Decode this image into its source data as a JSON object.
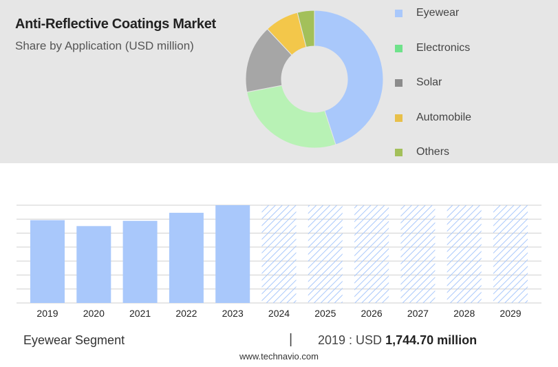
{
  "header": {
    "title": "Anti-Reflective Coatings Market",
    "subtitle": "Share by Application (USD million)"
  },
  "footer": {
    "segment": "Eyewear Segment",
    "separator": "|",
    "stat_prefix": "2019 : USD",
    "stat_value": "1,744.70 million",
    "source": "www.technavio.com"
  },
  "chart_data": [
    {
      "type": "pie",
      "donut": true,
      "legend_position": "right",
      "categories": [
        "Eyewear",
        "Electronics",
        "Solar",
        "Automobile",
        "Others"
      ],
      "values": [
        45,
        27,
        16,
        8,
        4
      ],
      "colors": [
        "#a9c8fb",
        "#b8f2b5",
        "#a6a6a6",
        "#f3c74a",
        "#a3c05a"
      ],
      "legend_colors": [
        "#a9c8fb",
        "#6fe28b",
        "#8c8c8c",
        "#e8c04a",
        "#a3c05a"
      ]
    },
    {
      "type": "bar",
      "categories": [
        "2019",
        "2020",
        "2021",
        "2022",
        "2023",
        "2024",
        "2025",
        "2026",
        "2027",
        "2028",
        "2029"
      ],
      "values": [
        1744.7,
        1620,
        1730,
        1900,
        2060,
        2060,
        2060,
        2060,
        2060,
        2060,
        2060
      ],
      "forecast": [
        false,
        false,
        false,
        false,
        false,
        true,
        true,
        true,
        true,
        true,
        true
      ],
      "ylim": [
        0,
        2060
      ],
      "grid": true,
      "colors": {
        "actual": "#a9c8fb",
        "forecast_hatch": "#a9c8fb",
        "gridline": "#cfcfcf"
      }
    }
  ]
}
